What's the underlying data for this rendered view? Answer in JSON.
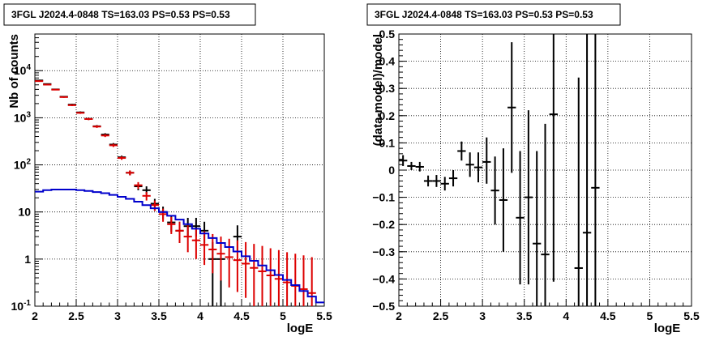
{
  "chart_data": [
    {
      "type": "scatter",
      "title": "3FGL J2024.4-0848 TS=163.03 PS=0.53 PS=0.53",
      "xlabel": "logE",
      "ylabel": "Nb of counts",
      "xlim": [
        2,
        5.5
      ],
      "ylim": [
        0.1,
        60000
      ],
      "yscale": "log",
      "grid": true,
      "x_ticks": [
        "2",
        "2.5",
        "3",
        "3.5",
        "4",
        "4.5",
        "5",
        "5.5"
      ],
      "y_ticks": [
        "10^-1",
        "1",
        "10",
        "10^2",
        "10^3",
        "10^4"
      ],
      "series": [
        {
          "kind": "data-points",
          "color": "#000000",
          "points": [
            {
              "x": 2.05,
              "y": 6200,
              "ylo": 6050,
              "yhi": 6350
            },
            {
              "x": 2.15,
              "y": 5200,
              "ylo": 5060,
              "yhi": 5340
            },
            {
              "x": 2.25,
              "y": 4000,
              "ylo": 3880,
              "yhi": 4120
            },
            {
              "x": 2.35,
              "y": 2800,
              "ylo": 2700,
              "yhi": 2900
            },
            {
              "x": 2.45,
              "y": 1900,
              "ylo": 1820,
              "yhi": 1980
            },
            {
              "x": 2.55,
              "y": 1300,
              "ylo": 1240,
              "yhi": 1360
            },
            {
              "x": 2.65,
              "y": 950,
              "ylo": 900,
              "yhi": 1000
            },
            {
              "x": 2.75,
              "y": 660,
              "ylo": 620,
              "yhi": 700
            },
            {
              "x": 2.85,
              "y": 440,
              "ylo": 410,
              "yhi": 470
            },
            {
              "x": 2.95,
              "y": 270,
              "ylo": 250,
              "yhi": 290
            },
            {
              "x": 3.05,
              "y": 145,
              "ylo": 133,
              "yhi": 157
            },
            {
              "x": 3.15,
              "y": 68,
              "ylo": 60,
              "yhi": 76
            },
            {
              "x": 3.25,
              "y": 35,
              "ylo": 29,
              "yhi": 41
            },
            {
              "x": 3.35,
              "y": 29,
              "ylo": 24,
              "yhi": 35
            },
            {
              "x": 3.45,
              "y": 15,
              "ylo": 11,
              "yhi": 19
            },
            {
              "x": 3.55,
              "y": 10,
              "ylo": 7,
              "yhi": 13
            },
            {
              "x": 3.65,
              "y": 6,
              "ylo": 3.8,
              "yhi": 8.5
            },
            {
              "x": 3.75,
              "y": 4,
              "ylo": 2.2,
              "yhi": 6.2
            },
            {
              "x": 3.85,
              "y": 5,
              "ylo": 3,
              "yhi": 7.5
            },
            {
              "x": 3.95,
              "y": 5,
              "ylo": 3,
              "yhi": 7.5
            },
            {
              "x": 4.05,
              "y": 4,
              "ylo": 2.2,
              "yhi": 6.2
            },
            {
              "x": 4.15,
              "y": 1,
              "ylo": 0.1,
              "yhi": 2.3
            },
            {
              "x": 4.25,
              "y": 1,
              "ylo": 0.1,
              "yhi": 2.3
            },
            {
              "x": 4.45,
              "y": 3,
              "ylo": 1.4,
              "yhi": 5.2
            }
          ]
        },
        {
          "kind": "model-points",
          "color": "#dd0000",
          "points": [
            {
              "x": 2.05,
              "y": 6000,
              "ylo": 5850,
              "yhi": 6150
            },
            {
              "x": 2.15,
              "y": 5050,
              "ylo": 4910,
              "yhi": 5190
            },
            {
              "x": 2.25,
              "y": 3950,
              "ylo": 3830,
              "yhi": 4070
            },
            {
              "x": 2.35,
              "y": 2750,
              "ylo": 2650,
              "yhi": 2850
            },
            {
              "x": 2.45,
              "y": 1850,
              "ylo": 1770,
              "yhi": 1930
            },
            {
              "x": 2.55,
              "y": 1270,
              "ylo": 1210,
              "yhi": 1330
            },
            {
              "x": 2.65,
              "y": 940,
              "ylo": 890,
              "yhi": 990
            },
            {
              "x": 2.75,
              "y": 650,
              "ylo": 610,
              "yhi": 690
            },
            {
              "x": 2.85,
              "y": 420,
              "ylo": 390,
              "yhi": 450
            },
            {
              "x": 2.95,
              "y": 260,
              "ylo": 240,
              "yhi": 280
            },
            {
              "x": 3.05,
              "y": 140,
              "ylo": 128,
              "yhi": 152
            },
            {
              "x": 3.15,
              "y": 68,
              "ylo": 60,
              "yhi": 76
            },
            {
              "x": 3.25,
              "y": 37,
              "ylo": 31,
              "yhi": 43
            },
            {
              "x": 3.35,
              "y": 22,
              "ylo": 17.5,
              "yhi": 26.5
            },
            {
              "x": 3.45,
              "y": 14,
              "ylo": 10.5,
              "yhi": 17.5
            },
            {
              "x": 3.55,
              "y": 9,
              "ylo": 6.2,
              "yhi": 11.8
            },
            {
              "x": 3.65,
              "y": 5.5,
              "ylo": 3.4,
              "yhi": 7.8
            },
            {
              "x": 3.75,
              "y": 4,
              "ylo": 2.2,
              "yhi": 6.2
            },
            {
              "x": 3.85,
              "y": 3,
              "ylo": 1.4,
              "yhi": 5.2
            },
            {
              "x": 3.95,
              "y": 2.5,
              "ylo": 1,
              "yhi": 4.5
            },
            {
              "x": 4.05,
              "y": 2,
              "ylo": 0.75,
              "yhi": 3.9
            },
            {
              "x": 4.15,
              "y": 1.6,
              "ylo": 0.5,
              "yhi": 3.4
            },
            {
              "x": 4.25,
              "y": 1.3,
              "ylo": 0.35,
              "yhi": 3.0
            },
            {
              "x": 4.35,
              "y": 1.1,
              "ylo": 0.25,
              "yhi": 2.7
            },
            {
              "x": 4.45,
              "y": 0.95,
              "ylo": 0.2,
              "yhi": 2.5
            },
            {
              "x": 4.55,
              "y": 0.8,
              "ylo": 0.15,
              "yhi": 2.3
            },
            {
              "x": 4.65,
              "y": 0.65,
              "ylo": 0.1,
              "yhi": 2.1
            },
            {
              "x": 4.75,
              "y": 0.55,
              "ylo": 0.1,
              "yhi": 1.9
            },
            {
              "x": 4.85,
              "y": 0.45,
              "ylo": 0.1,
              "yhi": 1.7
            },
            {
              "x": 4.95,
              "y": 0.38,
              "ylo": 0.1,
              "yhi": 1.55
            },
            {
              "x": 5.05,
              "y": 0.32,
              "ylo": 0.1,
              "yhi": 1.4
            },
            {
              "x": 5.15,
              "y": 0.27,
              "ylo": 0.1,
              "yhi": 1.3
            },
            {
              "x": 5.25,
              "y": 0.23,
              "ylo": 0.1,
              "yhi": 1.2
            },
            {
              "x": 5.35,
              "y": 0.19,
              "ylo": 0.1,
              "yhi": 1.1
            }
          ]
        },
        {
          "kind": "step-histogram",
          "color": "#0000cc",
          "bin_width": 0.1,
          "x_start": 2.0,
          "values": [
            27,
            29,
            30,
            30,
            30,
            29,
            28,
            26.5,
            25,
            23,
            21,
            19,
            16.5,
            14,
            12,
            10,
            8.3,
            6.9,
            5.5,
            4.4,
            3.5,
            2.8,
            2.2,
            1.8,
            1.45,
            1.15,
            0.92,
            0.73,
            0.58,
            0.46,
            0.36,
            0.28,
            0.21,
            0.16,
            0.12
          ]
        }
      ]
    },
    {
      "type": "scatter",
      "title": "3FGL J2024.4-0848 TS=163.03 PS=0.53 PS=0.53",
      "xlabel": "logE",
      "ylabel": "(data-model)/model",
      "xlim": [
        2,
        5.5
      ],
      "ylim": [
        -0.5,
        0.5
      ],
      "yscale": "linear",
      "grid": true,
      "x_ticks": [
        "2",
        "2.5",
        "3",
        "3.5",
        "4",
        "4.5",
        "5",
        "5.5"
      ],
      "y_ticks": [
        "−0.5",
        "−0.4",
        "−0.3",
        "−0.2",
        "−0.1",
        "0",
        "0.1",
        "0.2",
        "0.3",
        "0.4",
        "0.5"
      ],
      "series": [
        {
          "kind": "residuals",
          "color": "#000000",
          "points": [
            {
              "x": 2.05,
              "y": 0.035,
              "ylo": 0.015,
              "yhi": 0.055
            },
            {
              "x": 2.15,
              "y": 0.015,
              "ylo": 0.0,
              "yhi": 0.03
            },
            {
              "x": 2.25,
              "y": 0.012,
              "ylo": -0.005,
              "yhi": 0.03
            },
            {
              "x": 2.35,
              "y": -0.04,
              "ylo": -0.06,
              "yhi": -0.02
            },
            {
              "x": 2.45,
              "y": -0.04,
              "ylo": -0.062,
              "yhi": -0.018
            },
            {
              "x": 2.55,
              "y": -0.05,
              "ylo": -0.075,
              "yhi": -0.025
            },
            {
              "x": 2.65,
              "y": -0.03,
              "ylo": -0.06,
              "yhi": 0.0
            },
            {
              "x": 2.75,
              "y": 0.07,
              "ylo": 0.035,
              "yhi": 0.105
            },
            {
              "x": 2.85,
              "y": 0.02,
              "ylo": -0.025,
              "yhi": 0.065
            },
            {
              "x": 2.95,
              "y": 0.01,
              "ylo": -0.045,
              "yhi": 0.065
            },
            {
              "x": 3.05,
              "y": 0.03,
              "ylo": -0.05,
              "yhi": 0.12
            },
            {
              "x": 3.15,
              "y": -0.075,
              "ylo": -0.2,
              "yhi": 0.05
            },
            {
              "x": 3.25,
              "y": -0.11,
              "ylo": -0.3,
              "yhi": 0.08
            },
            {
              "x": 3.35,
              "y": 0.23,
              "ylo": -0.01,
              "yhi": 0.47
            },
            {
              "x": 3.45,
              "y": -0.175,
              "ylo": -0.42,
              "yhi": 0.07
            },
            {
              "x": 3.55,
              "y": -0.1,
              "ylo": -0.42,
              "yhi": 0.22
            },
            {
              "x": 3.65,
              "y": -0.27,
              "ylo": -0.5,
              "yhi": 0.07
            },
            {
              "x": 3.75,
              "y": -0.31,
              "ylo": -0.5,
              "yhi": 0.17
            },
            {
              "x": 3.85,
              "y": 0.205,
              "ylo": -0.41,
              "yhi": 0.5
            },
            {
              "x": 4.15,
              "y": -0.36,
              "ylo": -0.5,
              "yhi": 0.34
            },
            {
              "x": 4.25,
              "y": -0.23,
              "ylo": -0.5,
              "yhi": 0.5
            },
            {
              "x": 4.35,
              "y": -0.065,
              "ylo": -0.5,
              "yhi": 0.5
            }
          ]
        }
      ]
    }
  ]
}
